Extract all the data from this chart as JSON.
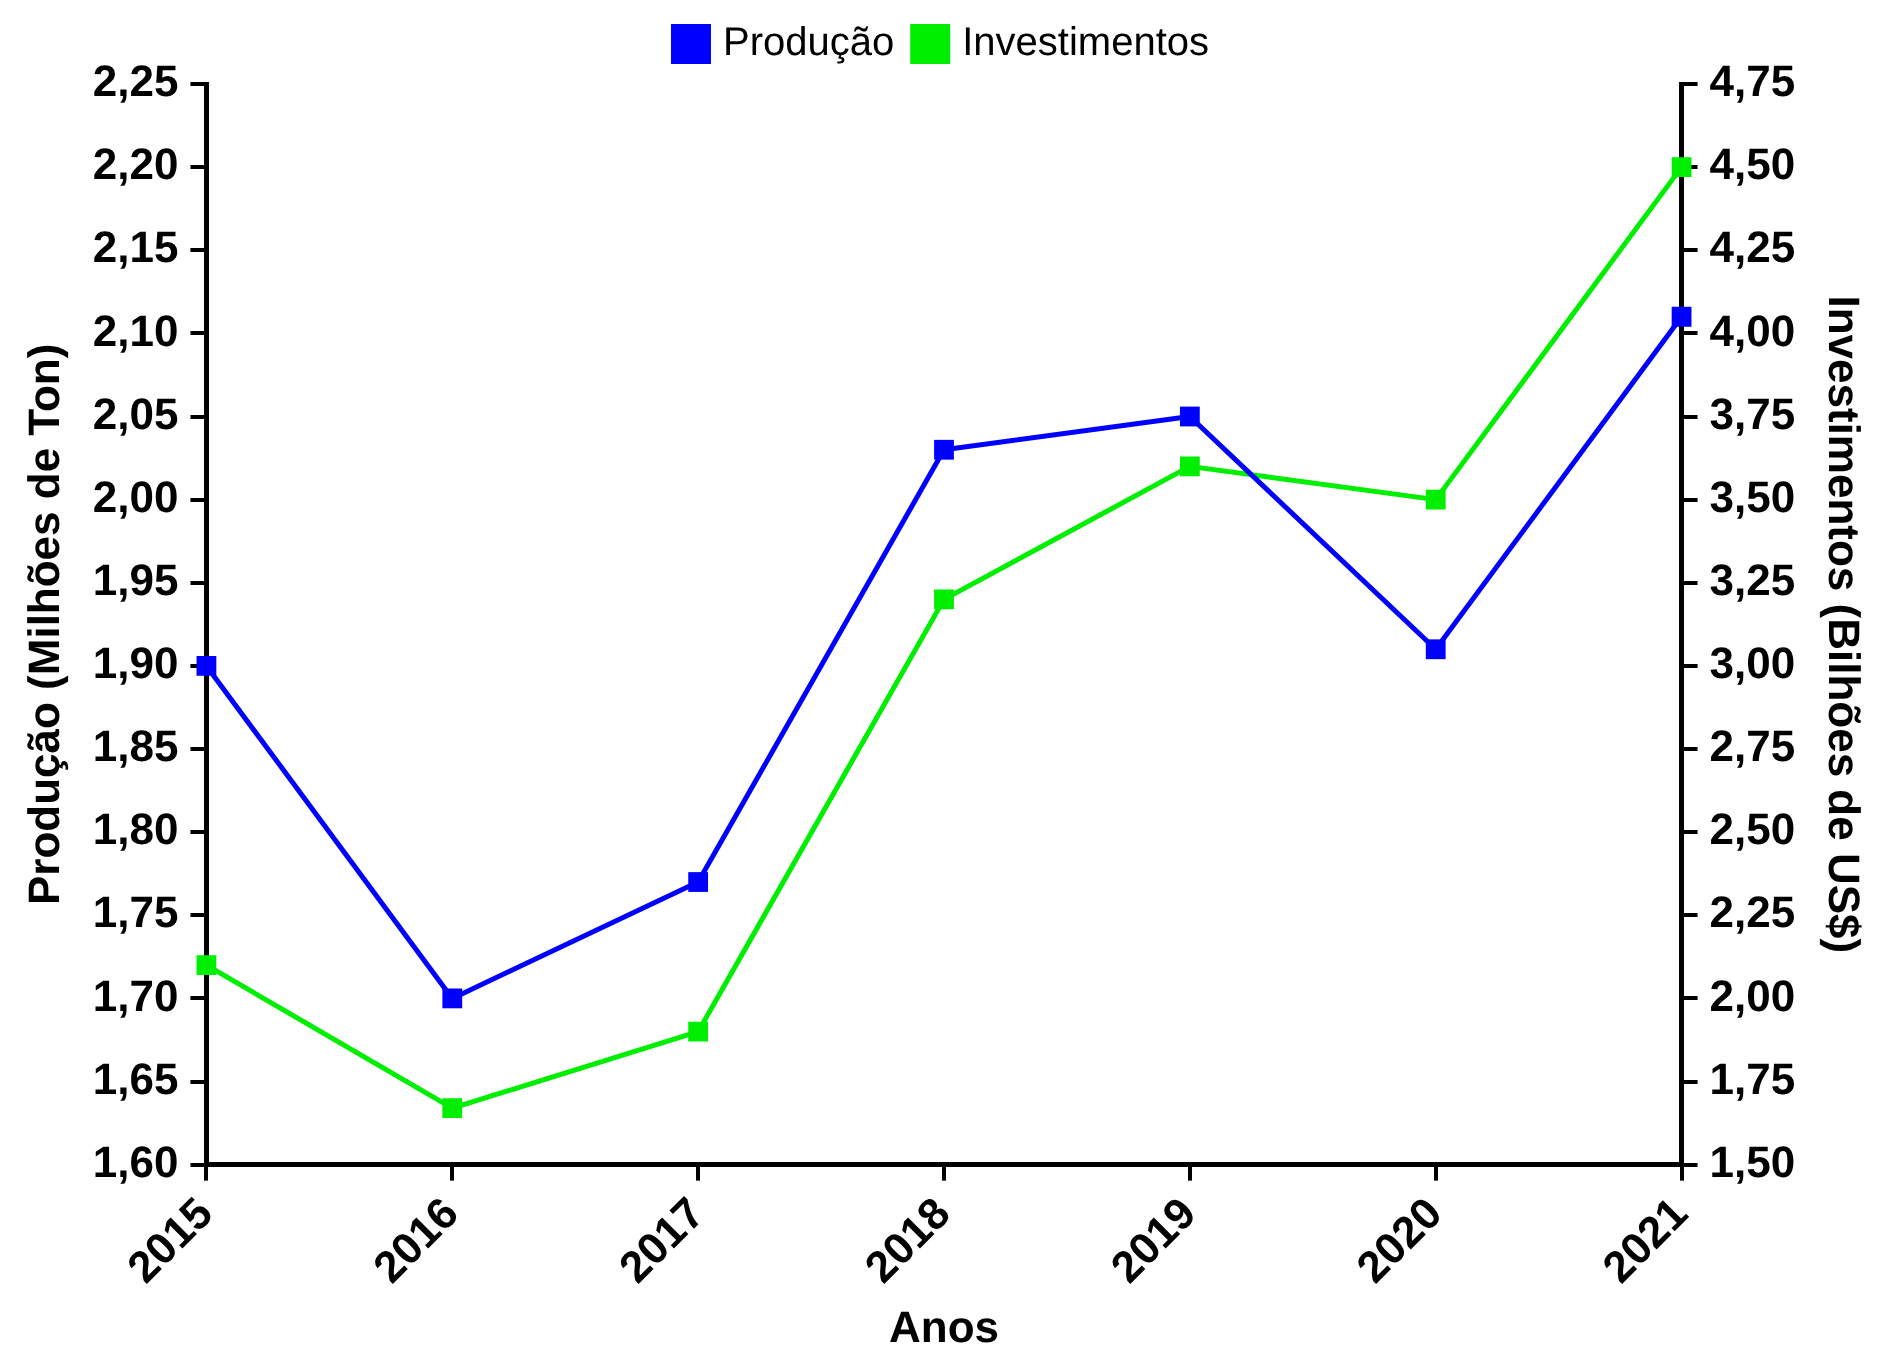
{
  "chart_data": {
    "type": "line",
    "xlabel": "Anos",
    "ylabel": "Produção (Milhões de Ton)",
    "y2label": "Investimentos (Bilhões de US$)",
    "categories": [
      "2015",
      "2016",
      "2017",
      "2018",
      "2019",
      "2020",
      "2021"
    ],
    "series": [
      {
        "name": "Produção",
        "color": "#0000ff",
        "values": [
          1.9,
          1.7,
          1.77,
          2.03,
          2.05,
          1.91,
          2.11
        ]
      },
      {
        "name": "Investimentos",
        "color": "#00ee00",
        "axis": "y2",
        "values": [
          2.1,
          1.67,
          1.9,
          3.2,
          3.6,
          3.5,
          4.5
        ]
      }
    ],
    "ylim": [
      1.6,
      2.25
    ],
    "yticks": [
      {
        "value": 1.6,
        "label": "1,60"
      },
      {
        "value": 1.65,
        "label": "1,65"
      },
      {
        "value": 1.7,
        "label": "1,70"
      },
      {
        "value": 1.75,
        "label": "1,75"
      },
      {
        "value": 1.8,
        "label": "1,80"
      },
      {
        "value": 1.85,
        "label": "1,85"
      },
      {
        "value": 1.9,
        "label": "1,90"
      },
      {
        "value": 1.95,
        "label": "1,95"
      },
      {
        "value": 2.0,
        "label": "2,00"
      },
      {
        "value": 2.05,
        "label": "2,05"
      },
      {
        "value": 2.1,
        "label": "2,10"
      },
      {
        "value": 2.15,
        "label": "2,15"
      },
      {
        "value": 2.2,
        "label": "2,20"
      },
      {
        "value": 2.25,
        "label": "2,25"
      }
    ],
    "y2lim": [
      1.5,
      4.75
    ],
    "y2ticks": [
      {
        "value": 1.5,
        "label": "1,50"
      },
      {
        "value": 1.75,
        "label": "1,75"
      },
      {
        "value": 2.0,
        "label": "2,00"
      },
      {
        "value": 2.25,
        "label": "2,25"
      },
      {
        "value": 2.5,
        "label": "2,50"
      },
      {
        "value": 2.75,
        "label": "2,75"
      },
      {
        "value": 3.0,
        "label": "3,00"
      },
      {
        "value": 3.25,
        "label": "3,25"
      },
      {
        "value": 3.5,
        "label": "3,50"
      },
      {
        "value": 3.75,
        "label": "3,75"
      },
      {
        "value": 4.0,
        "label": "4,00"
      },
      {
        "value": 4.25,
        "label": "4,25"
      },
      {
        "value": 4.5,
        "label": "4,50"
      },
      {
        "value": 4.75,
        "label": "4,75"
      }
    ],
    "grid": false,
    "legend": "top",
    "marker": "square",
    "line_style": "solid"
  }
}
